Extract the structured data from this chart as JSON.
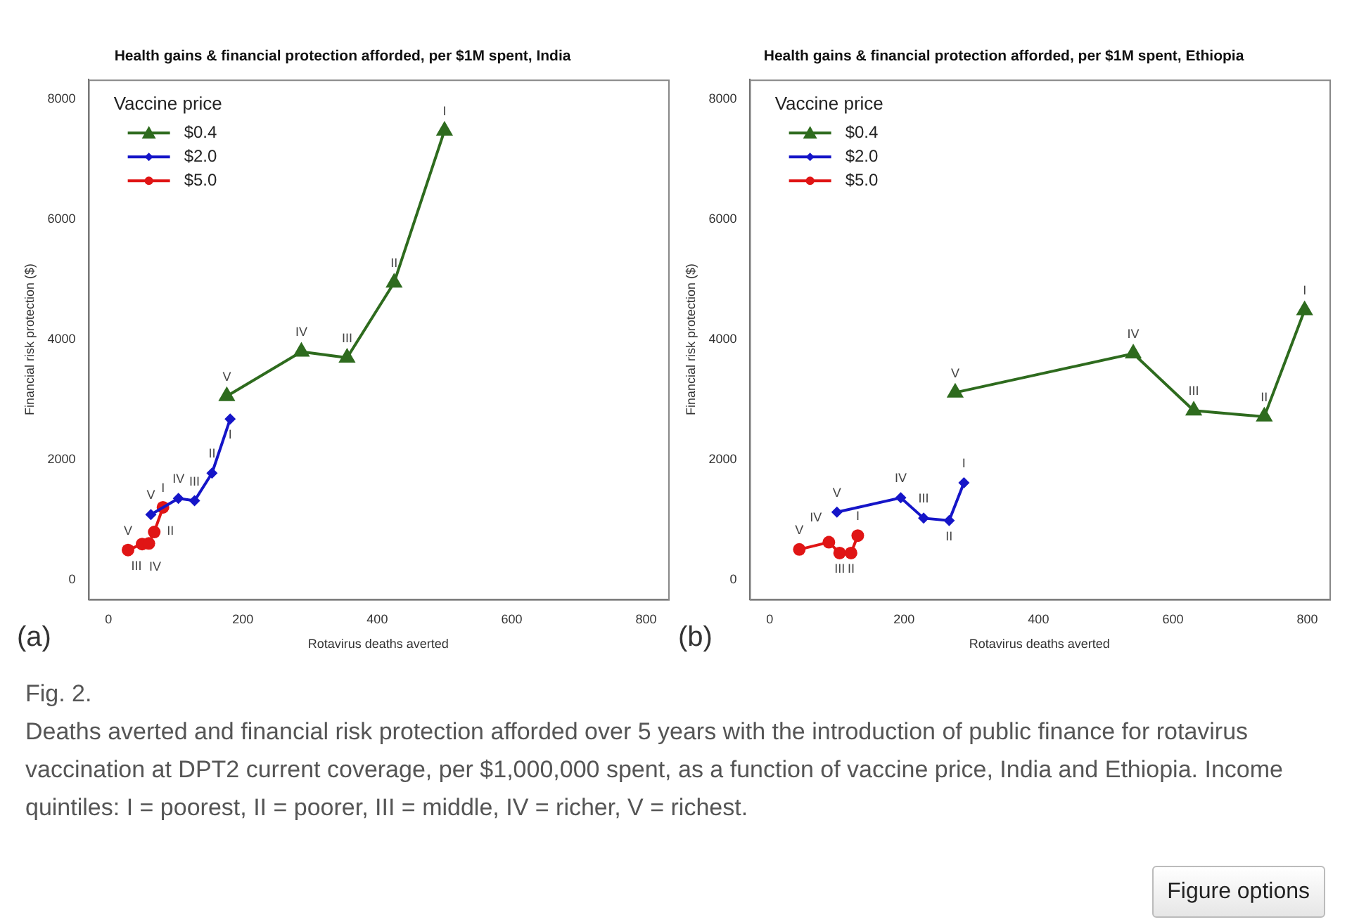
{
  "chart_data": [
    {
      "type": "line",
      "title": "Health gains & financial protection afforded, per $1M spent, India",
      "xlabel": "Rotavirus deaths averted",
      "ylabel": "Financial risk protection ($)",
      "legend_title": "Vaccine price",
      "legend": "top left",
      "grid": false,
      "xlim": [
        -30,
        833
      ],
      "xticks": [
        0,
        200,
        400,
        600,
        800
      ],
      "ylim": [
        -330,
        8320
      ],
      "yticks": [
        0,
        2000,
        4000,
        6000,
        8000
      ],
      "series": [
        {
          "name": "$0.4",
          "color": "#2e6b1e",
          "marker": "triangle",
          "x": [
            176,
            287,
            355,
            425,
            500
          ],
          "values": [
            3050,
            3790,
            3690,
            4940,
            7470
          ]
        },
        {
          "name": "$2.0",
          "color": "#1515c8",
          "marker": "diamond",
          "x": [
            63,
            104,
            128,
            154,
            181
          ],
          "values": [
            1080,
            1350,
            1310,
            1770,
            2670
          ]
        },
        {
          "name": "$5.0",
          "color": "#e01515",
          "marker": "circle",
          "x": [
            29,
            50,
            60,
            68,
            81
          ],
          "values": [
            490,
            590,
            600,
            790,
            1200
          ]
        }
      ],
      "annotations": [
        "(a)",
        {
          "text": "V",
          "x": 176,
          "y": 3050
        },
        {
          "text": "IV",
          "x": 287,
          "y": 3790
        },
        {
          "text": "III",
          "x": 355,
          "y": 3690
        },
        {
          "text": "II",
          "x": 425,
          "y": 4940
        },
        {
          "text": "I",
          "x": 500,
          "y": 7470
        },
        {
          "text": "V",
          "x": 63,
          "y": 1080
        },
        {
          "text": "IV",
          "x": 104,
          "y": 1350
        },
        {
          "text": "III",
          "x": 128,
          "y": 1310
        },
        {
          "text": "II",
          "x": 154,
          "y": 1770
        },
        {
          "text": "I",
          "x": 181,
          "y": 2670
        },
        {
          "text": "V",
          "x": 29,
          "y": 490
        },
        {
          "text": "IV",
          "x": 50,
          "y": 590
        },
        {
          "text": "III",
          "x": 60,
          "y": 600
        },
        {
          "text": "II",
          "x": 68,
          "y": 790
        },
        {
          "text": "I",
          "x": 81,
          "y": 1200
        }
      ]
    },
    {
      "type": "line",
      "title": "Health gains & financial protection afforded, per $1M spent, Ethiopia",
      "xlabel": "Rotavirus deaths averted",
      "ylabel": "Financial risk protection ($)",
      "legend_title": "Vaccine price",
      "legend": "top left",
      "grid": false,
      "xlim": [
        -30,
        833
      ],
      "xticks": [
        0,
        200,
        400,
        600,
        800
      ],
      "ylim": [
        -330,
        8320
      ],
      "yticks": [
        0,
        2000,
        4000,
        6000,
        8000
      ],
      "series": [
        {
          "name": "$0.4",
          "color": "#2e6b1e",
          "marker": "triangle",
          "x": [
            276,
            541,
            631,
            736,
            796
          ],
          "values": [
            3110,
            3760,
            2810,
            2710,
            4480
          ]
        },
        {
          "name": "$2.0",
          "color": "#1515c8",
          "marker": "diamond",
          "x": [
            100,
            195,
            229,
            267,
            289
          ],
          "values": [
            1120,
            1360,
            1020,
            980,
            1610
          ]
        },
        {
          "name": "$5.0",
          "color": "#e01515",
          "marker": "circle",
          "x": [
            44,
            88,
            104,
            121,
            131
          ],
          "values": [
            500,
            620,
            440,
            440,
            730
          ]
        }
      ],
      "annotations": [
        "(b)",
        {
          "text": "V",
          "x": 276,
          "y": 3110
        },
        {
          "text": "IV",
          "x": 541,
          "y": 3760
        },
        {
          "text": "III",
          "x": 631,
          "y": 2810
        },
        {
          "text": "II",
          "x": 736,
          "y": 2710
        },
        {
          "text": "I",
          "x": 796,
          "y": 4480
        },
        {
          "text": "V",
          "x": 100,
          "y": 1120
        },
        {
          "text": "IV",
          "x": 195,
          "y": 1360
        },
        {
          "text": "III",
          "x": 229,
          "y": 1020
        },
        {
          "text": "II",
          "x": 267,
          "y": 980
        },
        {
          "text": "I",
          "x": 289,
          "y": 1610
        },
        {
          "text": "V",
          "x": 44,
          "y": 500
        },
        {
          "text": "IV",
          "x": 88,
          "y": 620
        },
        {
          "text": "III",
          "x": 104,
          "y": 440
        },
        {
          "text": "II",
          "x": 121,
          "y": 440
        },
        {
          "text": "I",
          "x": 131,
          "y": 730
        }
      ]
    },
    {
      "type": "other",
      "annotations": [
        "Fig. 2.",
        "Deaths averted and financial risk protection afforded over 5 years with the introduction of public finance for rotavirus vaccination at DPT2 current coverage, per $1,000,000 spent, as a function of vaccine price, India and Ethiopia. Income quintiles: I = poorest, II = poorer, III = middle, IV = richer, V = richest.",
        "Figure options"
      ]
    }
  ]
}
